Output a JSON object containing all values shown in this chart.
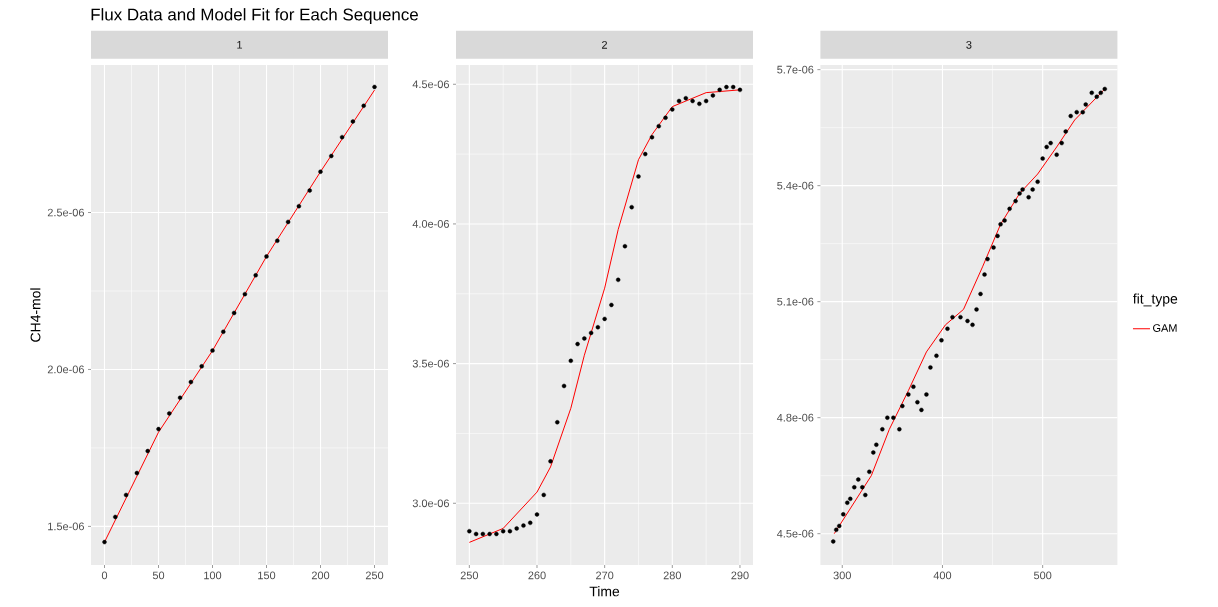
{
  "chart_data": [
    {
      "type": "scatter",
      "title": "Flux Data and Model Fit for Each Sequence",
      "subtitle": "1",
      "ylabel": "CH4-mol",
      "grid": true,
      "xlim": [
        -12.5,
        262.5
      ],
      "ylim": [
        1.377e-06,
        2.97e-06
      ],
      "xticks": [
        0,
        50,
        100,
        150,
        200,
        250
      ],
      "yticks": [
        {
          "value": 1.5e-06,
          "label": "1.5e-06"
        },
        {
          "value": 2e-06,
          "label": "2.0e-06"
        },
        {
          "value": 2.5e-06,
          "label": "2.5e-06"
        }
      ],
      "series": [
        {
          "color": "#000000",
          "marker": "circle",
          "x": [
            0,
            10,
            20,
            30,
            40,
            50,
            60,
            70,
            80,
            90,
            100,
            110,
            120,
            130,
            140,
            150,
            160,
            170,
            180,
            190,
            200,
            210,
            220,
            230,
            240,
            250
          ],
          "values": [
            1.45e-06,
            1.53e-06,
            1.6e-06,
            1.67e-06,
            1.74e-06,
            1.81e-06,
            1.86e-06,
            1.91e-06,
            1.96e-06,
            2.01e-06,
            2.06e-06,
            2.12e-06,
            2.18e-06,
            2.24e-06,
            2.3e-06,
            2.36e-06,
            2.41e-06,
            2.47e-06,
            2.52e-06,
            2.57e-06,
            2.63e-06,
            2.68e-06,
            2.74e-06,
            2.79e-06,
            2.84e-06,
            2.9e-06
          ]
        },
        {
          "type": "line",
          "color": "#ff0000",
          "marker": "none",
          "x": [
            0,
            50,
            100,
            150,
            200,
            250
          ],
          "values": [
            1.45e-06,
            1.8e-06,
            2.06e-06,
            2.36e-06,
            2.63e-06,
            2.89e-06
          ]
        }
      ]
    },
    {
      "type": "scatter",
      "subtitle": "2",
      "xlabel": "Time",
      "grid": true,
      "xlim": [
        248.03,
        291.93
      ],
      "ylim": [
        2.779e-06,
        4.569e-06
      ],
      "xticks": [
        250,
        260,
        270,
        280,
        290
      ],
      "yticks": [
        {
          "value": 3e-06,
          "label": "3.0e-06"
        },
        {
          "value": 3.5e-06,
          "label": "3.5e-06"
        },
        {
          "value": 4e-06,
          "label": "4.0e-06"
        },
        {
          "value": 4.5e-06,
          "label": "4.5e-06"
        }
      ],
      "series": [
        {
          "color": "#000000",
          "marker": "circle",
          "x": [
            250,
            251,
            252,
            253,
            254,
            255,
            256,
            257,
            258,
            259,
            260,
            261,
            262,
            263,
            264,
            265,
            266,
            267,
            268,
            269,
            270,
            271,
            272,
            273,
            274,
            275,
            276,
            277,
            278,
            279,
            280,
            281,
            282,
            283,
            284,
            285,
            286,
            287,
            288,
            289,
            290
          ],
          "values": [
            2.9e-06,
            2.89e-06,
            2.89e-06,
            2.89e-06,
            2.89e-06,
            2.9e-06,
            2.9e-06,
            2.91e-06,
            2.92e-06,
            2.93e-06,
            2.96e-06,
            3.03e-06,
            3.15e-06,
            3.29e-06,
            3.42e-06,
            3.51e-06,
            3.57e-06,
            3.59e-06,
            3.61e-06,
            3.63e-06,
            3.66e-06,
            3.71e-06,
            3.8e-06,
            3.92e-06,
            4.06e-06,
            4.17e-06,
            4.25e-06,
            4.31e-06,
            4.35e-06,
            4.38e-06,
            4.41e-06,
            4.44e-06,
            4.45e-06,
            4.44e-06,
            4.43e-06,
            4.44e-06,
            4.46e-06,
            4.48e-06,
            4.49e-06,
            4.49e-06,
            4.48e-06
          ]
        },
        {
          "type": "line",
          "color": "#ff0000",
          "marker": "none",
          "x": [
            250,
            255,
            260,
            262,
            265,
            267,
            270,
            272,
            275,
            277,
            280,
            285,
            290
          ],
          "values": [
            2.86e-06,
            2.91e-06,
            3.04e-06,
            3.13e-06,
            3.34e-06,
            3.53e-06,
            3.77e-06,
            3.98e-06,
            4.23e-06,
            4.32e-06,
            4.42e-06,
            4.47e-06,
            4.48e-06
          ]
        }
      ]
    },
    {
      "type": "scatter",
      "subtitle": "3",
      "grid": true,
      "legend": "right",
      "legend_title": "fit_type",
      "xlim": [
        278.2,
        574.6
      ],
      "ylim": [
        4.419e-06,
        5.712e-06
      ],
      "xticks": [
        300,
        400,
        500
      ],
      "yticks": [
        {
          "value": 4.5e-06,
          "label": "4.5e-06"
        },
        {
          "value": 4.8e-06,
          "label": "4.8e-06"
        },
        {
          "value": 5.1e-06,
          "label": "5.1e-06"
        },
        {
          "value": 5.4e-06,
          "label": "5.4e-06"
        },
        {
          "value": 5.7e-06,
          "label": "5.7e-06"
        }
      ],
      "series": [
        {
          "color": "#000000",
          "marker": "circle",
          "x": [
            291,
            294,
            297,
            301,
            305,
            308,
            312,
            316,
            320,
            323,
            327,
            331,
            334,
            340,
            345,
            351,
            357,
            360,
            366,
            371,
            375,
            379,
            384,
            388,
            394,
            399,
            405,
            410,
            418,
            425,
            430,
            434,
            438,
            442,
            445,
            451,
            455,
            458,
            462,
            467,
            473,
            477,
            480,
            486,
            490,
            495,
            500,
            504,
            508,
            514,
            519,
            523,
            528,
            534,
            540,
            543,
            549,
            554,
            558,
            562
          ],
          "values": [
            4.48e-06,
            4.51e-06,
            4.52e-06,
            4.55e-06,
            4.58e-06,
            4.59e-06,
            4.62e-06,
            4.64e-06,
            4.62e-06,
            4.6e-06,
            4.66e-06,
            4.71e-06,
            4.73e-06,
            4.77e-06,
            4.8e-06,
            4.8e-06,
            4.77e-06,
            4.83e-06,
            4.86e-06,
            4.88e-06,
            4.84e-06,
            4.82e-06,
            4.86e-06,
            4.93e-06,
            4.96e-06,
            5e-06,
            5.03e-06,
            5.06e-06,
            5.06e-06,
            5.05e-06,
            5.04e-06,
            5.08e-06,
            5.12e-06,
            5.17e-06,
            5.21e-06,
            5.24e-06,
            5.27e-06,
            5.3e-06,
            5.31e-06,
            5.34e-06,
            5.36e-06,
            5.38e-06,
            5.39e-06,
            5.37e-06,
            5.39e-06,
            5.41e-06,
            5.47e-06,
            5.5e-06,
            5.51e-06,
            5.48e-06,
            5.51e-06,
            5.54e-06,
            5.58e-06,
            5.59e-06,
            5.59e-06,
            5.61e-06,
            5.64e-06,
            5.63e-06,
            5.64e-06,
            5.65e-06
          ]
        },
        {
          "type": "line",
          "name": "GAM",
          "color": "#ff0000",
          "marker": "none",
          "x": [
            292,
            329,
            347,
            366,
            384,
            403,
            421,
            440,
            458,
            477,
            495,
            514,
            532,
            562
          ],
          "values": [
            4.5e-06,
            4.65e-06,
            4.77e-06,
            4.87e-06,
            4.97e-06,
            5.04e-06,
            5.08e-06,
            5.19e-06,
            5.3e-06,
            5.38e-06,
            5.43e-06,
            5.5e-06,
            5.57e-06,
            5.65e-06
          ]
        }
      ]
    }
  ]
}
